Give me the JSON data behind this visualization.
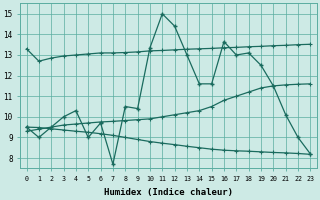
{
  "background_color": "#cdeae5",
  "grid_color": "#5aada0",
  "line_color": "#1a6b5e",
  "xlabel": "Humidex (Indice chaleur)",
  "xlim": [
    -0.5,
    23.5
  ],
  "ylim": [
    7.5,
    15.5
  ],
  "yticks": [
    8,
    9,
    10,
    11,
    12,
    13,
    14,
    15
  ],
  "xticks": [
    0,
    1,
    2,
    3,
    4,
    5,
    6,
    7,
    8,
    9,
    10,
    11,
    12,
    13,
    14,
    15,
    16,
    17,
    18,
    19,
    20,
    21,
    22,
    23
  ],
  "line1_x": [
    0,
    1,
    2,
    3,
    4,
    5,
    6,
    7,
    8,
    9,
    10,
    11,
    12,
    13,
    14,
    15,
    16,
    17,
    18,
    19,
    20,
    21,
    22,
    23
  ],
  "line1_y": [
    13.3,
    12.7,
    12.85,
    12.95,
    13.0,
    13.05,
    13.1,
    13.1,
    13.12,
    13.15,
    13.2,
    13.22,
    13.25,
    13.28,
    13.3,
    13.32,
    13.35,
    13.37,
    13.4,
    13.42,
    13.45,
    13.47,
    13.5,
    13.52
  ],
  "line2_x": [
    0,
    1,
    2,
    3,
    4,
    5,
    6,
    7,
    8,
    9,
    10,
    11,
    12,
    13,
    14,
    15,
    16,
    17,
    18,
    19,
    20,
    21,
    22,
    23
  ],
  "line2_y": [
    9.3,
    9.4,
    9.5,
    9.6,
    9.65,
    9.7,
    9.75,
    9.78,
    9.82,
    9.86,
    9.9,
    10.0,
    10.1,
    10.2,
    10.3,
    10.5,
    10.8,
    11.0,
    11.2,
    11.4,
    11.5,
    11.55,
    11.58,
    11.6
  ],
  "line3_x": [
    0,
    1,
    3,
    4,
    5,
    6,
    7,
    8,
    9,
    10,
    11,
    12,
    13,
    14,
    15,
    16,
    17,
    18,
    19,
    20,
    21,
    22,
    23
  ],
  "line3_y": [
    9.5,
    9.0,
    10.0,
    10.3,
    9.0,
    9.7,
    7.7,
    10.5,
    10.4,
    13.35,
    15.0,
    14.4,
    13.0,
    11.6,
    11.6,
    13.65,
    13.0,
    13.1,
    12.5,
    11.5,
    10.1,
    9.0,
    8.2
  ],
  "line4_x": [
    0,
    1,
    2,
    3,
    4,
    5,
    6,
    7,
    8,
    9,
    10,
    11,
    12,
    13,
    14,
    15,
    16,
    17,
    18,
    19,
    20,
    21,
    22,
    23
  ],
  "line4_y": [
    9.5,
    9.48,
    9.42,
    9.36,
    9.3,
    9.25,
    9.18,
    9.1,
    9.0,
    8.9,
    8.8,
    8.72,
    8.65,
    8.57,
    8.5,
    8.43,
    8.38,
    8.35,
    8.33,
    8.3,
    8.27,
    8.25,
    8.22,
    8.18
  ]
}
